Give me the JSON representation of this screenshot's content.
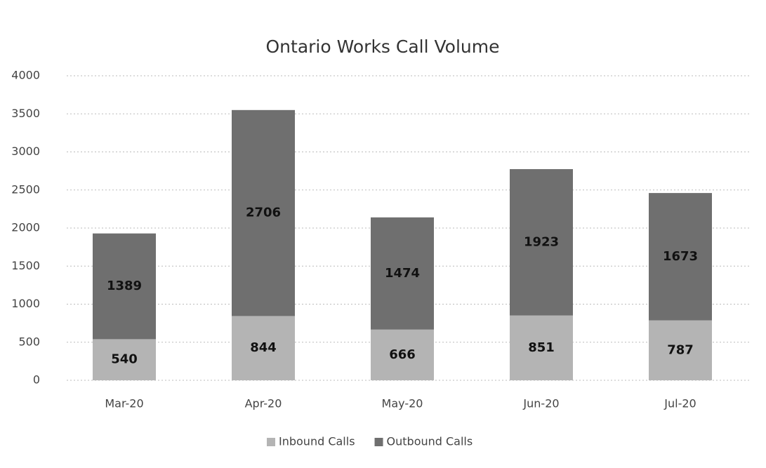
{
  "chart_data": {
    "type": "stacked_bar",
    "title": "Ontario Works Call Volume",
    "categories": [
      "Mar-20",
      "Apr-20",
      "May-20",
      "Jun-20",
      "Jul-20"
    ],
    "series": [
      {
        "name": "Inbound Calls",
        "color": "#b4b4b4",
        "values": [
          540,
          844,
          666,
          851,
          787
        ]
      },
      {
        "name": "Outbound Calls",
        "color": "#6f6f6f",
        "values": [
          1389,
          2706,
          1474,
          1923,
          1673
        ]
      }
    ],
    "ylim": [
      0,
      4000
    ],
    "yticks": [
      0,
      500,
      1000,
      1500,
      2000,
      2500,
      3000,
      3500,
      4000
    ],
    "grid": true,
    "legend": "bottom"
  }
}
